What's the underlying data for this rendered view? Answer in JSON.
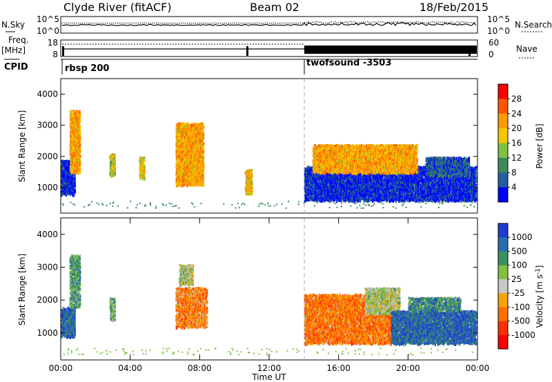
{
  "header": {
    "station": "Clyde River (fitACF)",
    "beam": "Beam 02",
    "date": "18/Feb/2015"
  },
  "top_panels": {
    "nsky_label": "N.Sky",
    "nsearch_label": "N.Search",
    "nsky_ticks": [
      "10^5",
      "10^0"
    ],
    "nsearch_ticks": [
      "10^5",
      "10^0"
    ],
    "freq_label": "Freq.",
    "freq_unit": "[MHz]",
    "freq_ticks": [
      "18",
      "8"
    ],
    "nave_label": "Nave",
    "nave_ticks": [
      "60",
      "0"
    ],
    "cpid_label": "CPID",
    "cpid_segments": [
      {
        "label": "rbsp 200",
        "start_hour": 0
      },
      {
        "label": "twofsound -3503",
        "start_hour": 14
      }
    ]
  },
  "chart_data": [
    {
      "type": "heatmap",
      "name": "power",
      "ylabel": "Slant Range [km]",
      "xlabel": "",
      "xlim": [
        0,
        24
      ],
      "ylim": [
        180,
        4500
      ],
      "y_ticks": [
        1000,
        2000,
        3000,
        4000
      ],
      "colorbar": {
        "label": "Power [dB]",
        "ticks": [
          "28",
          "24",
          "20",
          "16",
          "12",
          "8",
          "4"
        ],
        "colors": [
          "#ff0000",
          "#ff5500",
          "#ff9900",
          "#f2c800",
          "#80c040",
          "#3a8a5a",
          "#2060a0",
          "#0000ff"
        ]
      },
      "regions": [
        {
          "t": [
            0.0,
            0.8
          ],
          "r": [
            800,
            1900
          ],
          "level": 0.9
        },
        {
          "t": [
            0.5,
            1.1
          ],
          "r": [
            1500,
            3500
          ],
          "level": 0.35
        },
        {
          "t": [
            2.8,
            3.1
          ],
          "r": [
            1400,
            2100
          ],
          "level": 0.5
        },
        {
          "t": [
            4.5,
            4.8
          ],
          "r": [
            1300,
            2000
          ],
          "level": 0.45
        },
        {
          "t": [
            6.6,
            8.2
          ],
          "r": [
            1100,
            3100
          ],
          "level": 0.35
        },
        {
          "t": [
            10.6,
            11.0
          ],
          "r": [
            800,
            1600
          ],
          "level": 0.4
        },
        {
          "t": [
            14.0,
            23.9
          ],
          "r": [
            600,
            1700
          ],
          "level": 0.9
        },
        {
          "t": [
            14.5,
            20.5
          ],
          "r": [
            1500,
            2400
          ],
          "level": 0.35
        },
        {
          "t": [
            21.0,
            23.5
          ],
          "r": [
            1400,
            2000
          ],
          "level": 0.8
        }
      ]
    },
    {
      "type": "heatmap",
      "name": "velocity",
      "ylabel": "Slant Range [km]",
      "xlabel": "Time UT",
      "xlim": [
        0,
        24
      ],
      "ylim": [
        180,
        4500
      ],
      "x_ticks": [
        "00:00",
        "04:00",
        "08:00",
        "12:00",
        "16:00",
        "20:00",
        "00:00"
      ],
      "y_ticks": [
        1000,
        2000,
        3000,
        4000
      ],
      "colorbar": {
        "label": "Velocity [m s^-1]",
        "ticks": [
          "1000",
          "500",
          "100",
          "25",
          "-25",
          "-100",
          "-500",
          "-1000"
        ],
        "colors": [
          "#1e3cd0",
          "#2a6cb0",
          "#3a9060",
          "#80c040",
          "#c8c8c8",
          "#f5a500",
          "#ff7000",
          "#ff3000",
          "#ff0000"
        ]
      },
      "regions": [
        {
          "t": [
            0.0,
            0.8
          ],
          "r": [
            900,
            1800
          ],
          "level": 0.15
        },
        {
          "t": [
            0.5,
            1.1
          ],
          "r": [
            1800,
            3400
          ],
          "level": 0.3
        },
        {
          "t": [
            2.8,
            3.1
          ],
          "r": [
            1400,
            2100
          ],
          "level": 0.35
        },
        {
          "t": [
            6.6,
            8.4
          ],
          "r": [
            1200,
            2400
          ],
          "level": 0.68
        },
        {
          "t": [
            6.8,
            7.6
          ],
          "r": [
            2500,
            3100
          ],
          "level": 0.45
        },
        {
          "t": [
            14.0,
            19.0
          ],
          "r": [
            700,
            2200
          ],
          "level": 0.7
        },
        {
          "t": [
            17.5,
            19.5
          ],
          "r": [
            1600,
            2400
          ],
          "level": 0.45
        },
        {
          "t": [
            19.0,
            23.9
          ],
          "r": [
            700,
            1700
          ],
          "level": 0.15
        },
        {
          "t": [
            20.0,
            23.0
          ],
          "r": [
            1700,
            2100
          ],
          "level": 0.25
        }
      ]
    }
  ]
}
